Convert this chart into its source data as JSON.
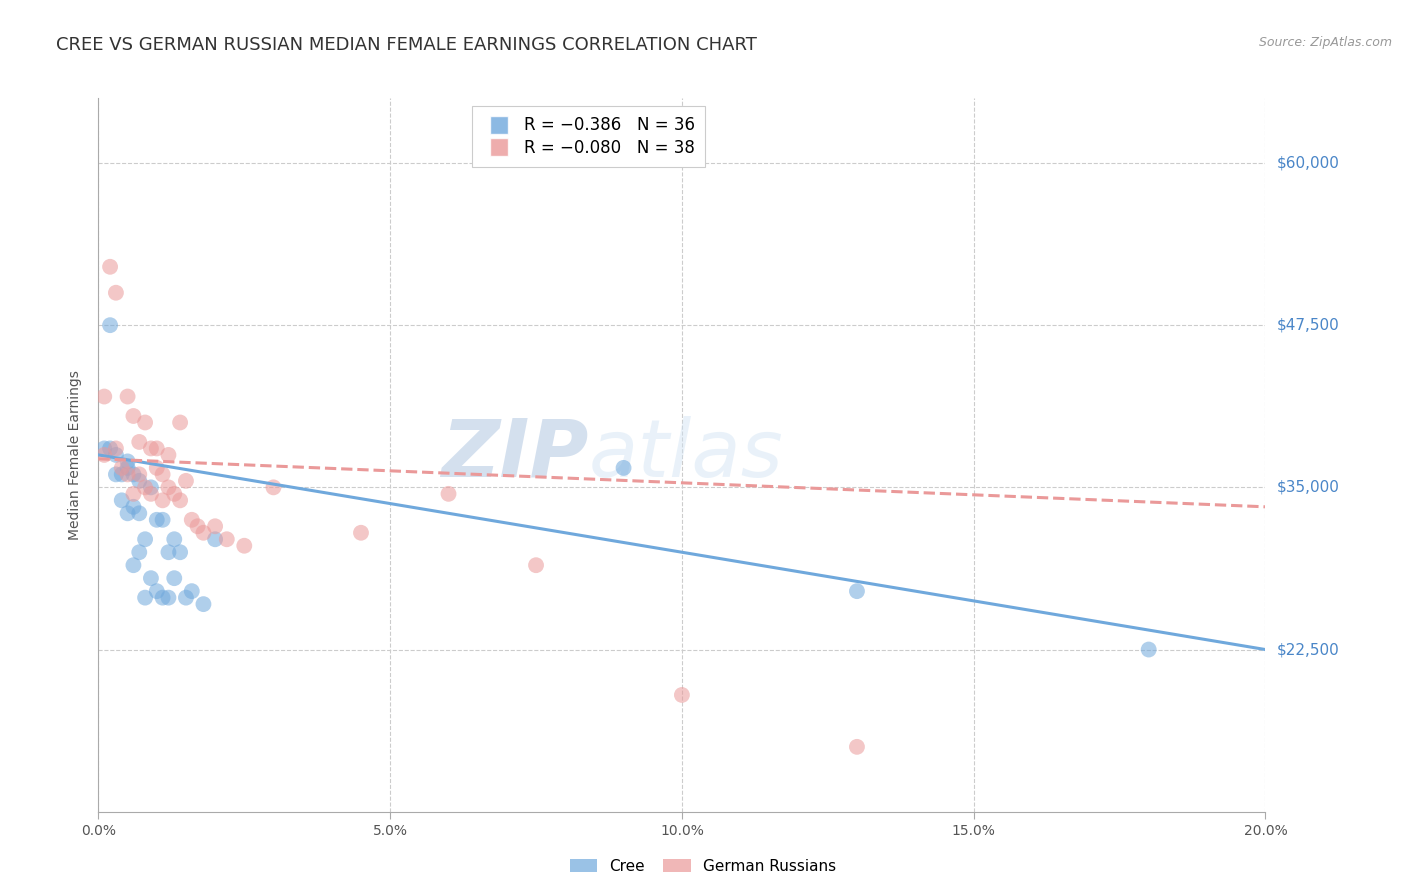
{
  "title": "CREE VS GERMAN RUSSIAN MEDIAN FEMALE EARNINGS CORRELATION CHART",
  "source": "Source: ZipAtlas.com",
  "xlabel_ticks": [
    "0.0%",
    "5.0%",
    "10.0%",
    "15.0%",
    "20.0%"
  ],
  "xlabel_tick_vals": [
    0.0,
    0.05,
    0.1,
    0.15,
    0.2
  ],
  "ylabel": "Median Female Earnings",
  "ylabel_ticks": [
    22500,
    35000,
    47500,
    60000
  ],
  "ylabel_tick_labels": [
    "$22,500",
    "$35,000",
    "$47,500",
    "$60,000"
  ],
  "xmin": 0.0,
  "xmax": 0.2,
  "ymin": 10000,
  "ymax": 65000,
  "watermark_part1": "ZIP",
  "watermark_part2": "atlas",
  "cree_color": "#6fa8dc",
  "german_color": "#ea9999",
  "cree_scatter_x": [
    0.001,
    0.002,
    0.002,
    0.003,
    0.003,
    0.004,
    0.004,
    0.005,
    0.005,
    0.005,
    0.006,
    0.006,
    0.006,
    0.007,
    0.007,
    0.007,
    0.008,
    0.008,
    0.009,
    0.009,
    0.01,
    0.01,
    0.011,
    0.011,
    0.012,
    0.012,
    0.013,
    0.013,
    0.014,
    0.015,
    0.016,
    0.018,
    0.02,
    0.09,
    0.13,
    0.18
  ],
  "cree_scatter_y": [
    38000,
    47500,
    38000,
    37500,
    36000,
    36000,
    34000,
    37000,
    33000,
    36500,
    36000,
    33500,
    29000,
    35500,
    33000,
    30000,
    31000,
    26500,
    35000,
    28000,
    32500,
    27000,
    32500,
    26500,
    30000,
    26500,
    28000,
    31000,
    30000,
    26500,
    27000,
    26000,
    31000,
    36500,
    27000,
    22500
  ],
  "german_scatter_x": [
    0.001,
    0.001,
    0.002,
    0.003,
    0.003,
    0.004,
    0.005,
    0.005,
    0.006,
    0.006,
    0.007,
    0.007,
    0.008,
    0.008,
    0.009,
    0.009,
    0.01,
    0.01,
    0.011,
    0.011,
    0.012,
    0.012,
    0.013,
    0.014,
    0.014,
    0.015,
    0.016,
    0.017,
    0.018,
    0.02,
    0.022,
    0.025,
    0.03,
    0.045,
    0.06,
    0.075,
    0.1,
    0.13
  ],
  "german_scatter_y": [
    42000,
    37500,
    52000,
    50000,
    38000,
    36500,
    42000,
    36000,
    40500,
    34500,
    38500,
    36000,
    40000,
    35000,
    38000,
    34500,
    38000,
    36500,
    36000,
    34000,
    37500,
    35000,
    34500,
    40000,
    34000,
    35500,
    32500,
    32000,
    31500,
    32000,
    31000,
    30500,
    35000,
    31500,
    34500,
    29000,
    19000,
    15000
  ],
  "cree_line_x": [
    0.0,
    0.2
  ],
  "cree_line_y": [
    37500,
    22500
  ],
  "german_line_x": [
    0.0,
    0.2
  ],
  "german_line_y": [
    37200,
    33500
  ],
  "background_color": "#ffffff",
  "grid_color": "#cccccc",
  "right_label_color": "#4a86c8",
  "title_fontsize": 13,
  "axis_label_fontsize": 10,
  "tick_fontsize": 10,
  "legend_entry_1": "R = −0.386   N = 36",
  "legend_entry_2": "R = −0.080   N = 38"
}
